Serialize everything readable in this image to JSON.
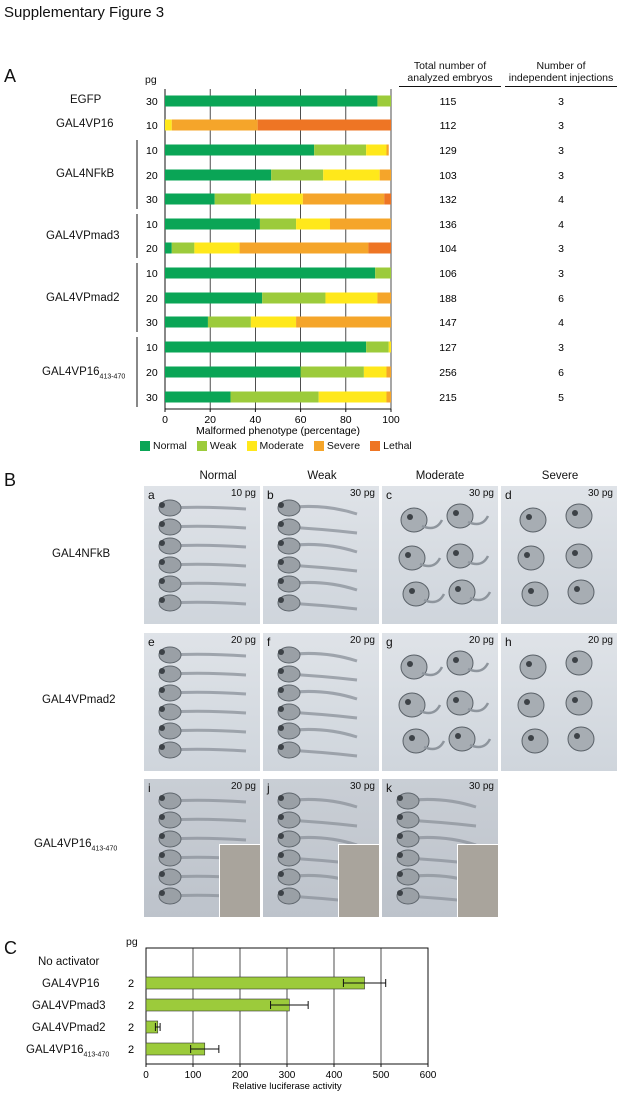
{
  "title": "Supplementary Figure 3",
  "panelA": {
    "letter": "A",
    "pg_label": "pg",
    "col_total_header": [
      "Total number of",
      "analyzed embryos"
    ],
    "col_inject_header": [
      "Number of",
      "independent injections"
    ],
    "xlabel": "Malformed phenotype (percentage)",
    "xticks": [
      "0",
      "20",
      "40",
      "60",
      "80",
      "100"
    ],
    "legend": [
      {
        "name": "Normal",
        "color": "#0aa556"
      },
      {
        "name": "Weak",
        "color": "#9ccb3b"
      },
      {
        "name": "Moderate",
        "color": "#ffe81b"
      },
      {
        "name": "Severe",
        "color": "#f5a52a"
      },
      {
        "name": "Lethal",
        "color": "#ee7524"
      }
    ],
    "groups": [
      {
        "name": "EGFP",
        "sub": ""
      },
      {
        "name": "GAL4VP16",
        "sub": ""
      },
      {
        "name": "GAL4NFkB",
        "sub": ""
      },
      {
        "name": "GAL4VPmad3",
        "sub": ""
      },
      {
        "name": "GAL4VPmad2",
        "sub": ""
      },
      {
        "name": "GAL4VP16",
        "sub": "413-470"
      }
    ]
  },
  "chart_data": [
    {
      "type": "bar",
      "orientation": "horizontal",
      "stacked": true,
      "xlabel": "Malformed phenotype (percentage)",
      "xlim": [
        0,
        100
      ],
      "series_names": [
        "Normal",
        "Weak",
        "Moderate",
        "Severe",
        "Lethal"
      ],
      "rows": [
        {
          "group": "EGFP",
          "pg": "30",
          "values": [
            94,
            6,
            0,
            0,
            0
          ],
          "total": "115",
          "injections": "3"
        },
        {
          "group": "GAL4VP16",
          "pg": "10",
          "values": [
            0,
            0,
            3,
            38,
            59
          ],
          "total": "112",
          "injections": "3"
        },
        {
          "group": "GAL4NFkB",
          "pg": "10",
          "values": [
            66,
            23,
            9,
            1,
            0
          ],
          "total": "129",
          "injections": "3"
        },
        {
          "group": "GAL4NFkB",
          "pg": "20",
          "values": [
            47,
            23,
            25,
            5,
            0
          ],
          "total": "103",
          "injections": "3"
        },
        {
          "group": "GAL4NFkB",
          "pg": "30",
          "values": [
            22,
            16,
            23,
            36,
            3
          ],
          "total": "132",
          "injections": "4"
        },
        {
          "group": "GAL4VPmad3",
          "pg": "10",
          "values": [
            42,
            16,
            15,
            27,
            0
          ],
          "total": "136",
          "injections": "4"
        },
        {
          "group": "GAL4VPmad3",
          "pg": "20",
          "values": [
            3,
            10,
            20,
            57,
            10
          ],
          "total": "104",
          "injections": "3"
        },
        {
          "group": "GAL4VPmad2",
          "pg": "10",
          "values": [
            93,
            7,
            0,
            0,
            0
          ],
          "total": "106",
          "injections": "3"
        },
        {
          "group": "GAL4VPmad2",
          "pg": "20",
          "values": [
            43,
            28,
            23,
            6,
            0
          ],
          "total": "188",
          "injections": "6"
        },
        {
          "group": "GAL4VPmad2",
          "pg": "30",
          "values": [
            19,
            19,
            20,
            42,
            0
          ],
          "total": "147",
          "injections": "4"
        },
        {
          "group": "GAL4VP16413-470",
          "pg": "10",
          "values": [
            89,
            10,
            1,
            0,
            0
          ],
          "total": "127",
          "injections": "3"
        },
        {
          "group": "GAL4VP16413-470",
          "pg": "20",
          "values": [
            60,
            28,
            10,
            2,
            0
          ],
          "total": "256",
          "injections": "6"
        },
        {
          "group": "GAL4VP16413-470",
          "pg": "30",
          "values": [
            29,
            39,
            30,
            2,
            0
          ],
          "total": "215",
          "injections": "5"
        }
      ]
    },
    {
      "type": "bar",
      "orientation": "horizontal",
      "xlabel": "Relative luciferase activity",
      "xlim": [
        0,
        600
      ],
      "xticks": [
        "0",
        "100",
        "200",
        "300",
        "400",
        "500",
        "600"
      ],
      "categories": [
        "No activator",
        "GAL4VP16",
        "GAL4VPmad3",
        "GAL4VPmad2",
        "GAL4VP16413-470"
      ],
      "values": [
        1,
        465,
        305,
        25,
        125
      ],
      "errors": [
        0,
        45,
        40,
        5,
        30
      ],
      "pg": [
        "",
        "2",
        "2",
        "2",
        "2"
      ],
      "color": "#9ccb3b"
    }
  ],
  "panelB": {
    "letter": "B",
    "columns": [
      "Normal",
      "Weak",
      "Moderate",
      "Severe"
    ],
    "rows": [
      {
        "name": "GAL4NFkB",
        "sub": ""
      },
      {
        "name": "GAL4VPmad2",
        "sub": ""
      },
      {
        "name": "GAL4VP16",
        "sub": "413-470"
      }
    ],
    "panels": [
      {
        "label": "a",
        "dose": "10 pg"
      },
      {
        "label": "b",
        "dose": "30 pg"
      },
      {
        "label": "c",
        "dose": "30 pg"
      },
      {
        "label": "d",
        "dose": "30 pg"
      },
      {
        "label": "e",
        "dose": "20 pg"
      },
      {
        "label": "f",
        "dose": "20 pg"
      },
      {
        "label": "g",
        "dose": "20 pg"
      },
      {
        "label": "h",
        "dose": "20 pg"
      },
      {
        "label": "i",
        "dose": "20 pg"
      },
      {
        "label": "j",
        "dose": "30 pg"
      },
      {
        "label": "k",
        "dose": "30 pg"
      }
    ]
  },
  "panelC": {
    "letter": "C",
    "pg_label": "pg",
    "labels": [
      {
        "name": "No activator",
        "sub": ""
      },
      {
        "name": "GAL4VP16",
        "sub": ""
      },
      {
        "name": "GAL4VPmad3",
        "sub": ""
      },
      {
        "name": "GAL4VPmad2",
        "sub": ""
      },
      {
        "name": "GAL4VP16",
        "sub": "413-470"
      }
    ]
  }
}
